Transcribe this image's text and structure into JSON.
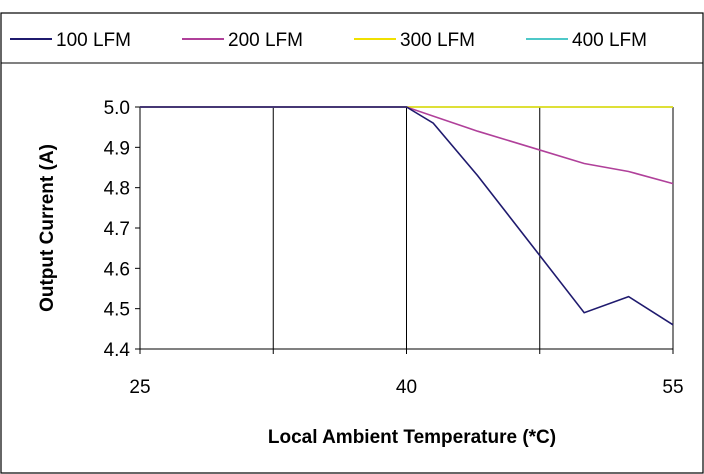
{
  "chart_data": {
    "type": "line",
    "title": "",
    "xlabel": "Local Ambient Temperature (*C)",
    "ylabel": "Output Current (A)",
    "xlim": [
      25,
      55
    ],
    "ylim": [
      4.4,
      5.0
    ],
    "x_ticks": [
      "25",
      "40",
      "55"
    ],
    "y_ticks": [
      "5.0",
      "4.9",
      "4.8",
      "4.7",
      "4.6",
      "4.5",
      "4.4"
    ],
    "grid": true,
    "legend_position": "top",
    "series": [
      {
        "name": "100 LFM",
        "color": "#1f1a6e",
        "x": [
          25,
          40,
          41.5,
          44,
          47,
          50,
          52.5,
          55
        ],
        "y": [
          5.0,
          5.0,
          4.96,
          4.83,
          4.66,
          4.49,
          4.53,
          4.46
        ]
      },
      {
        "name": "200 LFM",
        "color": "#b0409a",
        "x": [
          25,
          40,
          42,
          44,
          47,
          50,
          52.5,
          55
        ],
        "y": [
          5.0,
          5.0,
          4.97,
          4.94,
          4.9,
          4.86,
          4.84,
          4.81
        ]
      },
      {
        "name": "300 LFM",
        "color": "#f0e000",
        "x": [
          25,
          55
        ],
        "y": [
          5.0,
          5.0
        ]
      },
      {
        "name": "400 LFM",
        "color": "#4ec8c8",
        "x": [
          25,
          55
        ],
        "y": [
          5.0,
          5.0
        ]
      }
    ]
  }
}
